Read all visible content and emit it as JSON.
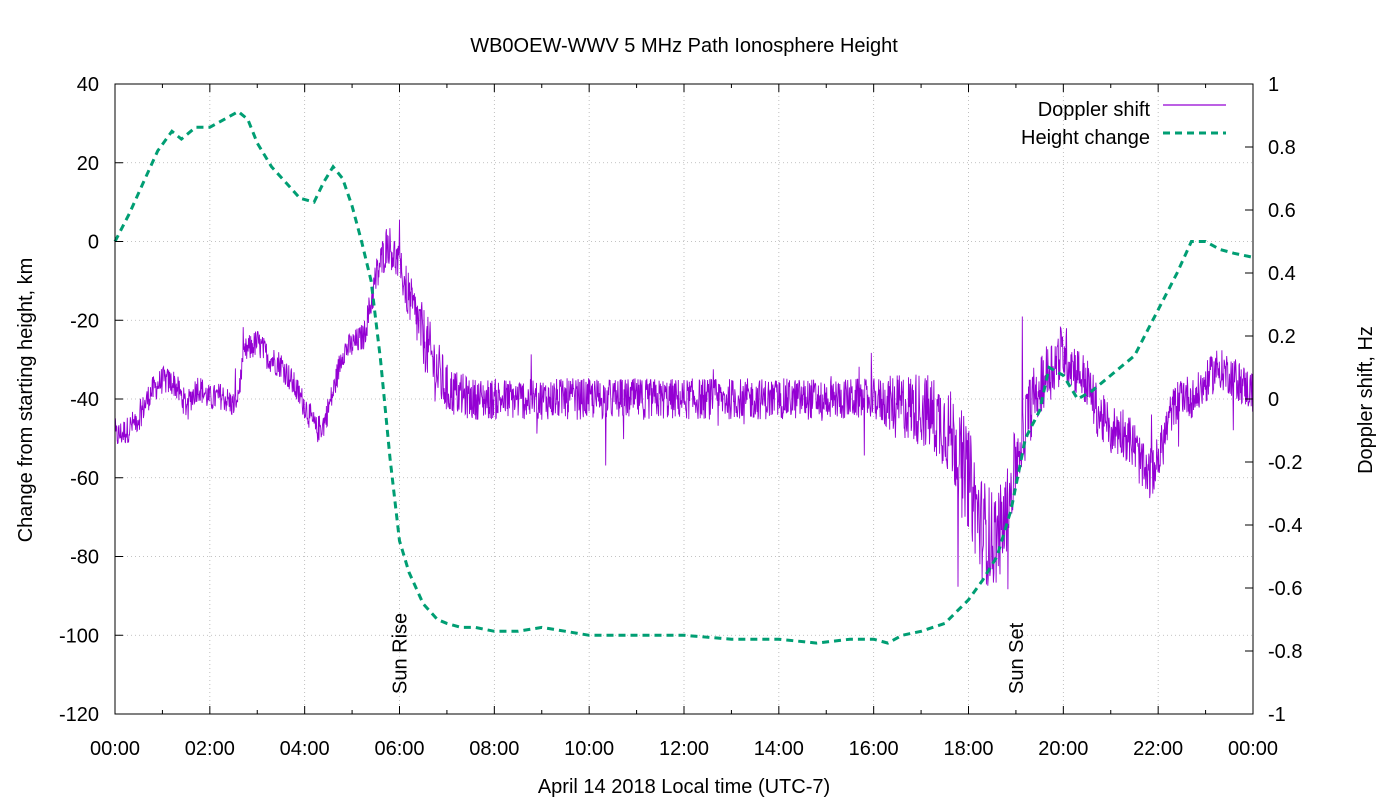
{
  "chart_data": {
    "type": "line",
    "title": "WB0OEW-WWV 5 MHz Path Ionosphere Height",
    "xlabel": "April 14 2018 Local time (UTC-7)",
    "ylabel_left": "Change from starting height, km",
    "ylabel_right": "Doppler shift, Hz",
    "xlim_hours": [
      0,
      24
    ],
    "ylim_left": [
      -120,
      40
    ],
    "ylim_right": [
      -1,
      1
    ],
    "grid": true,
    "legend_position": "top-right",
    "x_ticks": [
      {
        "v": 0,
        "label": "00:00"
      },
      {
        "v": 2,
        "label": "02:00"
      },
      {
        "v": 4,
        "label": "04:00"
      },
      {
        "v": 6,
        "label": "06:00"
      },
      {
        "v": 8,
        "label": "08:00"
      },
      {
        "v": 10,
        "label": "10:00"
      },
      {
        "v": 12,
        "label": "12:00"
      },
      {
        "v": 14,
        "label": "14:00"
      },
      {
        "v": 16,
        "label": "16:00"
      },
      {
        "v": 18,
        "label": "18:00"
      },
      {
        "v": 20,
        "label": "20:00"
      },
      {
        "v": 22,
        "label": "22:00"
      },
      {
        "v": 24,
        "label": "00:00"
      }
    ],
    "y_ticks_left": [
      {
        "v": 40,
        "label": "40"
      },
      {
        "v": 20,
        "label": "20"
      },
      {
        "v": 0,
        "label": "0"
      },
      {
        "v": -20,
        "label": "-20"
      },
      {
        "v": -40,
        "label": "-40"
      },
      {
        "v": -60,
        "label": "-60"
      },
      {
        "v": -80,
        "label": "-80"
      },
      {
        "v": -100,
        "label": "-100"
      },
      {
        "v": -120,
        "label": "-120"
      }
    ],
    "y_ticks_right": [
      {
        "v": 1,
        "label": "1"
      },
      {
        "v": 0.8,
        "label": "0.8"
      },
      {
        "v": 0.6,
        "label": "0.6"
      },
      {
        "v": 0.4,
        "label": "0.4"
      },
      {
        "v": 0.2,
        "label": "0.2"
      },
      {
        "v": 0,
        "label": "0"
      },
      {
        "v": -0.2,
        "label": "-0.2"
      },
      {
        "v": -0.4,
        "label": "-0.4"
      },
      {
        "v": -0.6,
        "label": "-0.6"
      },
      {
        "v": -0.8,
        "label": "-0.8"
      },
      {
        "v": -1,
        "label": "-1"
      }
    ],
    "annotations": [
      {
        "text": "Sun Rise",
        "x_hours": 6.0
      },
      {
        "text": "Sun Set",
        "x_hours": 19.0
      }
    ],
    "series": [
      {
        "name": "Doppler shift",
        "axis": "right",
        "color": "#9400d3",
        "style": "solid",
        "x_hours": [
          0.0,
          0.25,
          0.5,
          0.75,
          1.0,
          1.25,
          1.5,
          1.75,
          2.0,
          2.25,
          2.5,
          2.6,
          2.75,
          3.0,
          3.25,
          3.5,
          3.75,
          4.0,
          4.25,
          4.4,
          4.6,
          4.8,
          5.0,
          5.25,
          5.5,
          5.75,
          6.0,
          6.25,
          6.5,
          6.75,
          7.0,
          7.5,
          8.0,
          9.0,
          10.0,
          11.0,
          12.0,
          13.0,
          14.0,
          15.0,
          16.0,
          16.5,
          17.0,
          17.5,
          17.75,
          18.0,
          18.25,
          18.5,
          18.75,
          19.0,
          19.25,
          19.5,
          19.75,
          20.0,
          20.25,
          20.5,
          20.75,
          21.0,
          21.25,
          21.5,
          21.75,
          22.0,
          22.25,
          22.5,
          22.75,
          23.0,
          23.25,
          23.5,
          23.75,
          24.0
        ],
        "values": [
          -0.12,
          -0.1,
          -0.06,
          0.02,
          0.06,
          0.05,
          -0.02,
          0.04,
          0.0,
          0.01,
          -0.02,
          0.02,
          0.15,
          0.18,
          0.13,
          0.11,
          0.05,
          -0.02,
          -0.1,
          -0.08,
          0.02,
          0.15,
          0.17,
          0.2,
          0.38,
          0.5,
          0.42,
          0.3,
          0.2,
          0.1,
          0.03,
          0.0,
          0.0,
          0.0,
          0.0,
          0.0,
          0.0,
          0.0,
          0.0,
          0.0,
          0.0,
          -0.02,
          -0.03,
          -0.08,
          -0.15,
          -0.25,
          -0.4,
          -0.45,
          -0.4,
          -0.2,
          -0.05,
          0.05,
          0.1,
          0.15,
          0.1,
          0.05,
          -0.05,
          -0.1,
          -0.1,
          -0.15,
          -0.25,
          -0.2,
          -0.05,
          0.02,
          0.0,
          0.05,
          0.1,
          0.08,
          0.05,
          0.02
        ],
        "noise_amplitude": [
          0.08,
          0.08,
          0.08,
          0.08,
          0.08,
          0.08,
          0.08,
          0.08,
          0.08,
          0.08,
          0.08,
          0.08,
          0.08,
          0.08,
          0.08,
          0.08,
          0.08,
          0.08,
          0.08,
          0.08,
          0.08,
          0.08,
          0.08,
          0.08,
          0.12,
          0.12,
          0.12,
          0.15,
          0.18,
          0.2,
          0.15,
          0.12,
          0.12,
          0.12,
          0.12,
          0.12,
          0.12,
          0.12,
          0.12,
          0.12,
          0.12,
          0.18,
          0.22,
          0.25,
          0.28,
          0.3,
          0.3,
          0.3,
          0.25,
          0.22,
          0.2,
          0.18,
          0.18,
          0.18,
          0.15,
          0.15,
          0.15,
          0.15,
          0.15,
          0.15,
          0.15,
          0.15,
          0.12,
          0.12,
          0.12,
          0.12,
          0.12,
          0.12,
          0.12,
          0.12
        ]
      },
      {
        "name": "Height change",
        "axis": "left",
        "color": "#009e73",
        "style": "dashed",
        "x_hours": [
          0.0,
          0.3,
          0.6,
          0.9,
          1.2,
          1.4,
          1.7,
          2.0,
          2.3,
          2.6,
          2.8,
          3.0,
          3.3,
          3.6,
          3.9,
          4.2,
          4.4,
          4.6,
          4.8,
          5.0,
          5.2,
          5.4,
          5.6,
          5.8,
          6.0,
          6.2,
          6.5,
          6.8,
          7.0,
          7.3,
          7.6,
          8.0,
          8.5,
          9.0,
          9.5,
          10.0,
          11.0,
          12.0,
          13.0,
          14.0,
          14.8,
          15.5,
          16.0,
          16.3,
          16.6,
          17.0,
          17.5,
          18.0,
          18.3,
          18.6,
          18.9,
          19.2,
          19.5,
          19.7,
          20.0,
          20.3,
          20.6,
          20.9,
          21.2,
          21.5,
          21.8,
          22.1,
          22.4,
          22.7,
          23.0,
          23.3,
          23.6,
          24.0
        ],
        "values": [
          0,
          7,
          15,
          23,
          28,
          26,
          29,
          29,
          31,
          33,
          31,
          25,
          19,
          15,
          11,
          10,
          15,
          19,
          16,
          9,
          0,
          -10,
          -30,
          -55,
          -76,
          -84,
          -92,
          -96,
          -97,
          -98,
          -98,
          -99,
          -99,
          -98,
          -99,
          -100,
          -100,
          -100,
          -101,
          -101,
          -102,
          -101,
          -101,
          -102,
          -100,
          -99,
          -97,
          -91,
          -86,
          -80,
          -68,
          -50,
          -43,
          -32,
          -34,
          -40,
          -38,
          -35,
          -32,
          -29,
          -22,
          -15,
          -8,
          0,
          0,
          -2,
          -3,
          -4
        ]
      }
    ]
  }
}
